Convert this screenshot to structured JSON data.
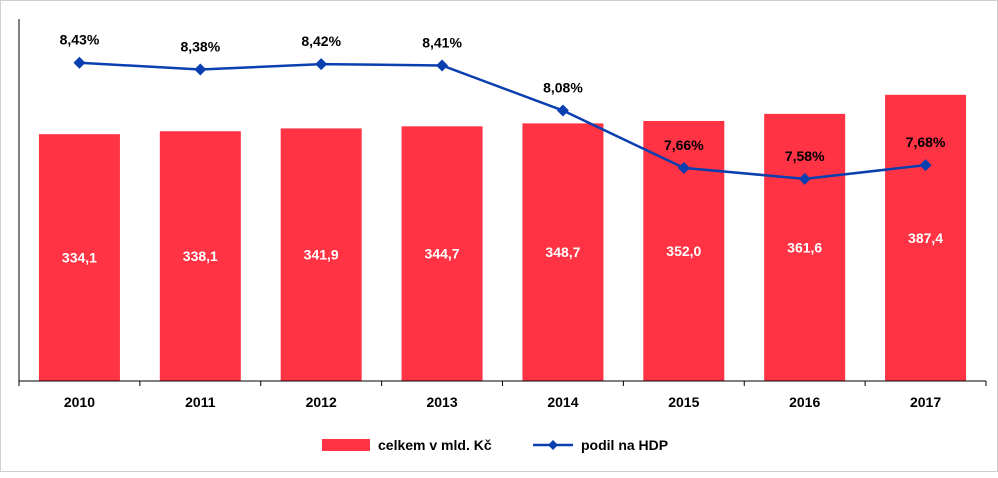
{
  "chart_data": {
    "type": "bar",
    "categories": [
      "2010",
      "2011",
      "2012",
      "2013",
      "2014",
      "2015",
      "2016",
      "2017"
    ],
    "series": [
      {
        "name": "celkem v mld. Kč",
        "type": "bar",
        "values": [
          334.1,
          338.1,
          341.9,
          344.7,
          348.7,
          352.0,
          361.6,
          387.4
        ],
        "labels": [
          "334,1",
          "338,1",
          "341,9",
          "344,7",
          "348,7",
          "352,0",
          "361,6",
          "387,4"
        ],
        "color": "#ff3344"
      },
      {
        "name": "podil na HDP",
        "type": "line",
        "values": [
          8.43,
          8.38,
          8.42,
          8.41,
          8.08,
          7.66,
          7.58,
          7.68
        ],
        "labels": [
          "8,43%",
          "8,38%",
          "8,42%",
          "8,41%",
          "8,08%",
          "7,66%",
          "7,58%",
          "7,68%"
        ],
        "color": "#0a3fb0"
      }
    ],
    "bar_axis_range": [
      0,
      490
    ],
    "line_axis_range": [
      6.1,
      8.75
    ],
    "grid": false,
    "legend_position": "bottom"
  }
}
